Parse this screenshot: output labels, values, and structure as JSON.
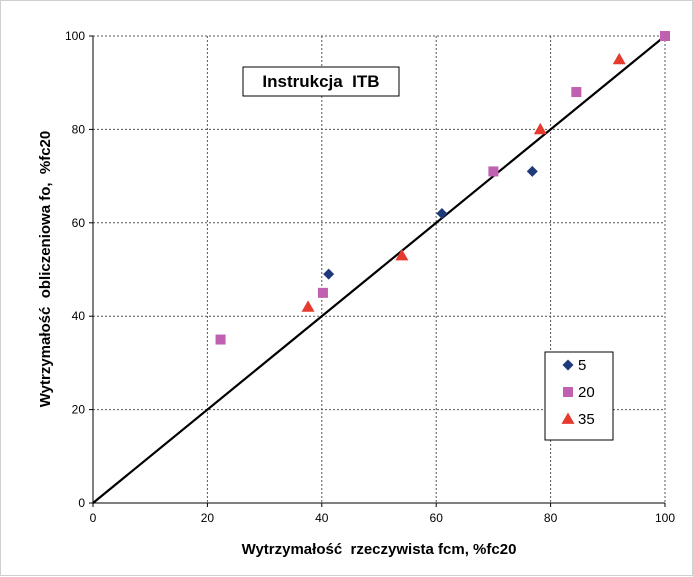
{
  "chart_data": {
    "type": "scatter",
    "title": "",
    "annotation": "Instrukcja  ITB",
    "xlabel": "Wytrzymałość  rzeczywista fcm, %fc20",
    "ylabel": "Wytrzymałość  obliczeniowa fo,  %fc20",
    "xlim": [
      0,
      100
    ],
    "ylim": [
      0,
      100
    ],
    "xticks": [
      "0",
      "20",
      "40",
      "60",
      "80",
      "100"
    ],
    "yticks": [
      "0",
      "20",
      "40",
      "60",
      "80",
      "100"
    ],
    "grid": "dashed",
    "legend_position": "bottom-right",
    "series": [
      {
        "name": "5",
        "marker": "diamond",
        "color": "#1f3a7a",
        "points": [
          [
            41.2,
            49
          ],
          [
            61,
            62
          ],
          [
            76.8,
            71
          ]
        ]
      },
      {
        "name": "20",
        "marker": "square",
        "color": "#c060b0",
        "points": [
          [
            22.3,
            35
          ],
          [
            40.2,
            45
          ],
          [
            70,
            71
          ],
          [
            84.5,
            88
          ],
          [
            100,
            100
          ]
        ]
      },
      {
        "name": "35",
        "marker": "triangle",
        "color": "#e63a2e",
        "points": [
          [
            37.6,
            42
          ],
          [
            54,
            53
          ],
          [
            78.2,
            80
          ],
          [
            92,
            95
          ]
        ]
      }
    ],
    "reference_line": {
      "from": [
        0,
        0
      ],
      "to": [
        100,
        100
      ],
      "color": "#000000"
    }
  }
}
